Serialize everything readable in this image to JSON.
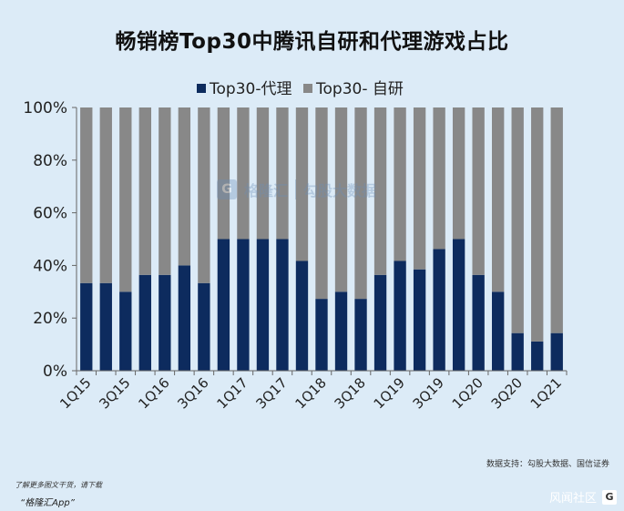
{
  "title": "畅销榜Top30中腾讯自研和代理游戏占比",
  "source": "数据支持：勾股大数据、国信证券",
  "footer": {
    "note": "了解更多图文干货，请下载",
    "app": "“格隆汇App”"
  },
  "watermark": {
    "brand": "格隆汇",
    "product": "勾股大数据"
  },
  "corner_mark": "风闻社区",
  "colors": {
    "background": "#dcebf7",
    "series_proxy": "#0d2b5e",
    "series_self": "#888888"
  },
  "chart_data": {
    "type": "bar",
    "stacked": true,
    "percent_stacked": true,
    "title": "畅销榜Top30中腾讯自研和代理游戏占比",
    "categories": [
      "1Q15",
      "2Q15",
      "3Q15",
      "4Q15",
      "1Q16",
      "2Q16",
      "3Q16",
      "4Q16",
      "1Q17",
      "2Q17",
      "3Q17",
      "4Q17",
      "1Q18",
      "2Q18",
      "3Q18",
      "4Q18",
      "1Q19",
      "2Q19",
      "3Q19",
      "4Q19",
      "1Q20",
      "2Q20",
      "3Q20",
      "4Q20",
      "1Q21"
    ],
    "tick_labels": [
      "1Q15",
      "3Q15",
      "1Q16",
      "3Q16",
      "1Q17",
      "3Q17",
      "1Q18",
      "3Q18",
      "1Q19",
      "3Q19",
      "1Q20",
      "3Q20",
      "1Q21"
    ],
    "series": [
      {
        "name": "Top30-代理",
        "color": "#0d2b5e",
        "values": [
          33.3,
          33.3,
          30,
          36.4,
          36.4,
          40,
          33.3,
          50,
          50,
          50,
          50,
          41.7,
          27.3,
          30,
          27.3,
          36.4,
          41.7,
          38.5,
          46.2,
          50,
          36.4,
          30,
          14.3,
          11.1,
          14.3
        ]
      },
      {
        "name": "Top30- 自研",
        "color": "#888888",
        "values": [
          66.7,
          66.7,
          70,
          63.6,
          63.6,
          60,
          66.7,
          50,
          50,
          50,
          50,
          58.3,
          72.7,
          70,
          72.7,
          63.6,
          58.3,
          61.5,
          53.8,
          50,
          63.6,
          70,
          85.7,
          88.9,
          85.7
        ]
      }
    ],
    "ylim": [
      0,
      100
    ],
    "yticks": [
      "0%",
      "20%",
      "40%",
      "60%",
      "80%",
      "100%"
    ],
    "legend": "top-center",
    "grid": false
  }
}
